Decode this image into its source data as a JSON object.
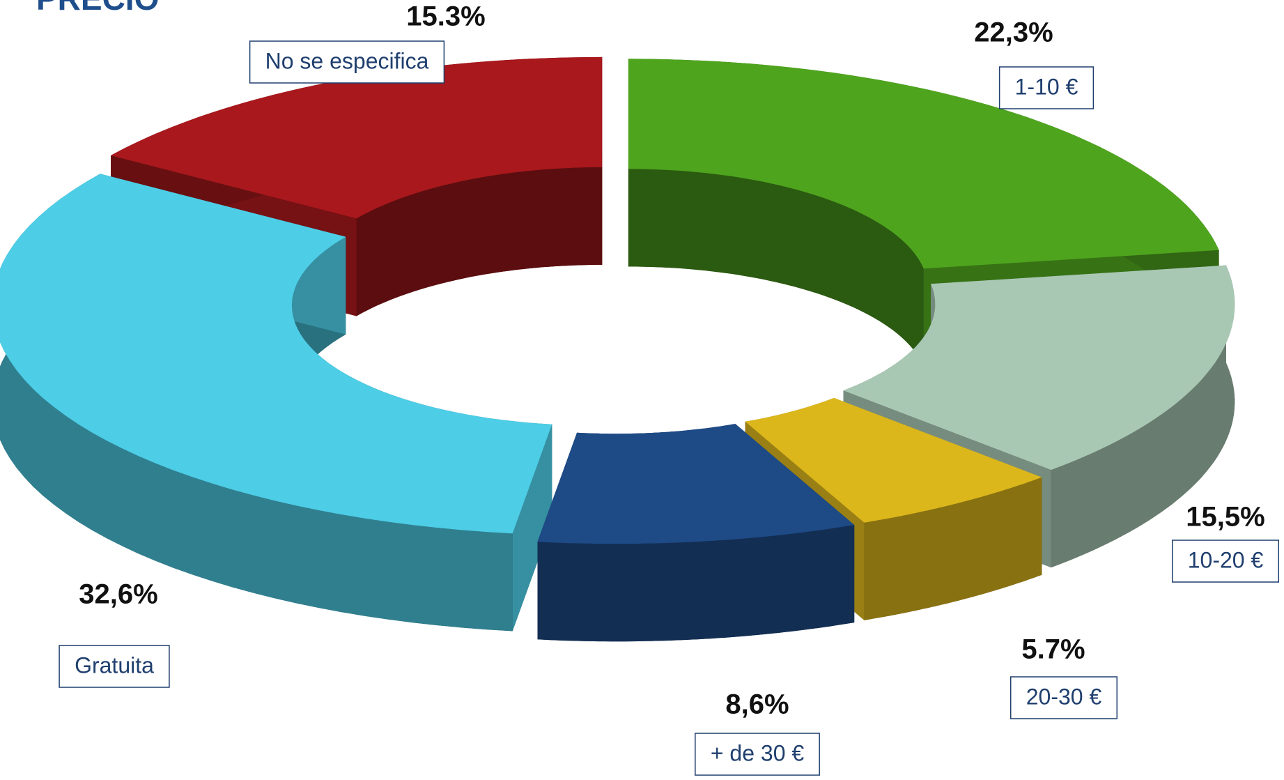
{
  "chart_data": {
    "type": "donut3d",
    "title": "PRECIO",
    "categories": [
      "1-10 €",
      "10-20 €",
      "20-30 €",
      "+ de 30 €",
      "Gratuita",
      "No se especifica"
    ],
    "values": [
      22.3,
      15.5,
      5.7,
      8.6,
      32.6,
      15.3
    ],
    "value_labels": [
      "22,3%",
      "15,5%",
      "5.7%",
      "8,6%",
      "32,6%",
      "15.3%"
    ],
    "colors": [
      "#4fa41e",
      "#a9c8b4",
      "#dcb71c",
      "#1e4a86",
      "#4dcde6",
      "#a8181c"
    ]
  }
}
